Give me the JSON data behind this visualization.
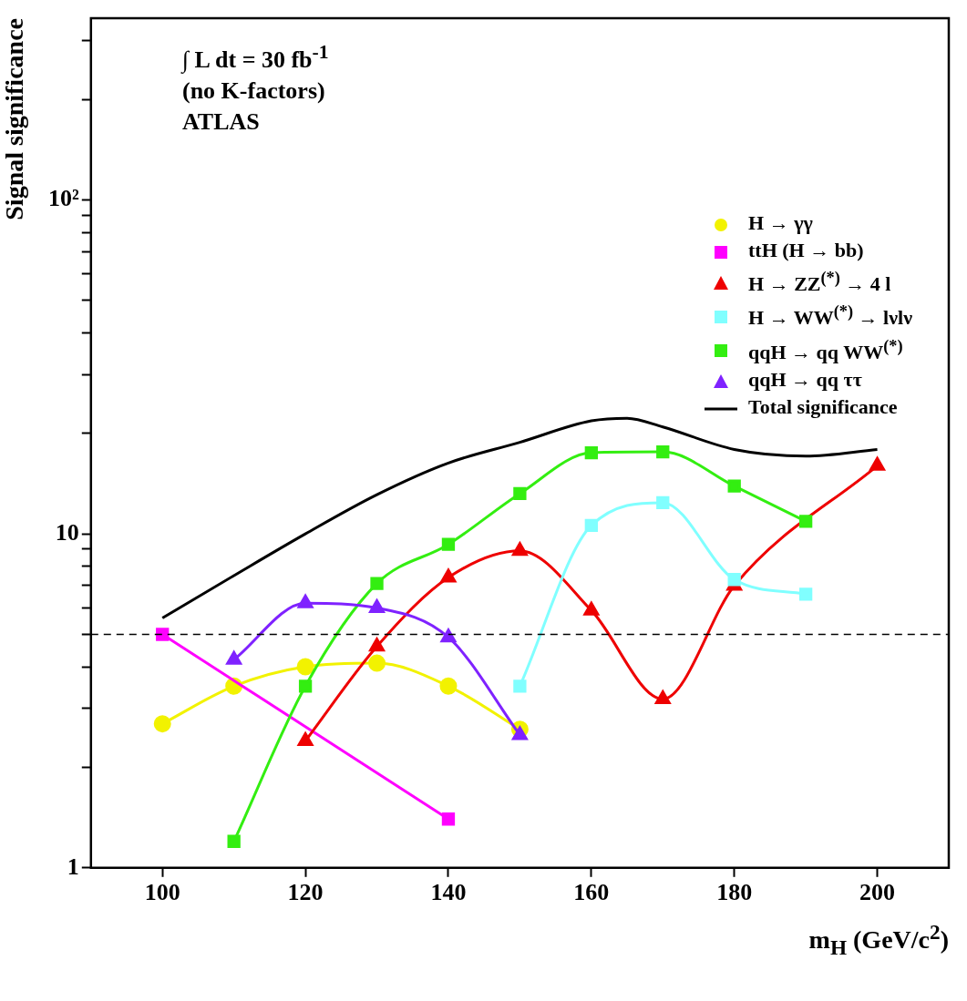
{
  "chart_data": {
    "type": "line",
    "xlabel": "m$_{H}$ (GeV/c$^{2}$)",
    "ylabel": "Signal significance",
    "annotations": [
      "∫ L dt = 30 fb$^{-1}$",
      "(no K-factors)",
      "ATLAS"
    ],
    "log": "y",
    "xlim": [
      90,
      210
    ],
    "xticks": [
      100,
      120,
      140,
      160,
      180,
      200
    ],
    "ylim": [
      1,
      350
    ],
    "yticks": [
      1,
      {
        "value": 2,
        "label": null
      },
      {
        "value": 3,
        "label": null
      },
      {
        "value": 4,
        "label": null
      },
      {
        "value": 5,
        "label": null
      },
      {
        "value": 6,
        "label": null
      },
      {
        "value": 7,
        "label": null
      },
      {
        "value": 8,
        "label": null
      },
      {
        "value": 9,
        "label": null
      },
      10,
      {
        "value": 20,
        "label": null
      },
      {
        "value": 30,
        "label": null
      },
      {
        "value": 40,
        "label": null
      },
      {
        "value": 50,
        "label": null
      },
      {
        "value": 60,
        "label": null
      },
      {
        "value": 70,
        "label": null
      },
      {
        "value": 80,
        "label": null
      },
      {
        "value": 90,
        "label": null
      },
      {
        "value": 100,
        "label": "10²"
      },
      {
        "value": 200,
        "label": null
      },
      {
        "value": 300,
        "label": null
      }
    ],
    "legend": "top right",
    "ref_lines": [
      {
        "axis": "y",
        "value": 5,
        "color": "#000000",
        "line_style": "dashed"
      }
    ],
    "series": [
      {
        "name": "H → γγ",
        "color": "#f2f200",
        "marker": "circle",
        "x": [
          100,
          110,
          120,
          130,
          140,
          150
        ],
        "values": [
          2.7,
          3.5,
          4.0,
          4.1,
          3.5,
          2.6
        ]
      },
      {
        "name": "ttH (H → bb)",
        "color": "#ff00ff",
        "marker": "square",
        "x": [
          100,
          140
        ],
        "values": [
          5.0,
          1.4
        ]
      },
      {
        "name": "H → ZZ$^{(*)}$ → 4 l",
        "color": "#ee0000",
        "marker": "triangle",
        "x": [
          120,
          130,
          140,
          150,
          160,
          170,
          180,
          200
        ],
        "values": [
          2.4,
          4.6,
          7.4,
          8.9,
          5.9,
          3.2,
          7.0,
          16
        ]
      },
      {
        "name": "H → WW$^{(*)}$ → lνlν",
        "color": "#80ffff",
        "marker": "square",
        "x": [
          150,
          160,
          170,
          180,
          190
        ],
        "values": [
          3.5,
          10.6,
          12.4,
          7.3,
          6.6
        ]
      },
      {
        "name": "qqH → qq WW$^{(*)}$",
        "color": "#33ee11",
        "marker": "square",
        "x": [
          110,
          120,
          130,
          140,
          150,
          160,
          170,
          180,
          190
        ],
        "values": [
          1.2,
          3.5,
          7.1,
          9.3,
          13.2,
          17.5,
          17.6,
          13.9,
          10.9
        ]
      },
      {
        "name": "qqH → qq ττ",
        "color": "#7f22ff",
        "marker": "triangle",
        "x": [
          110,
          120,
          130,
          140,
          150
        ],
        "values": [
          4.2,
          6.2,
          6.0,
          4.9,
          2.5
        ]
      },
      {
        "name": "Total significance",
        "color": "#000000",
        "marker": "none",
        "x": [
          100,
          110,
          120,
          130,
          140,
          150,
          160,
          165,
          170,
          180,
          190,
          200
        ],
        "values": [
          5.6,
          7.5,
          10,
          13.1,
          16.3,
          18.8,
          21.8,
          22.2,
          20.9,
          17.9,
          17.1,
          17.9
        ]
      }
    ]
  }
}
